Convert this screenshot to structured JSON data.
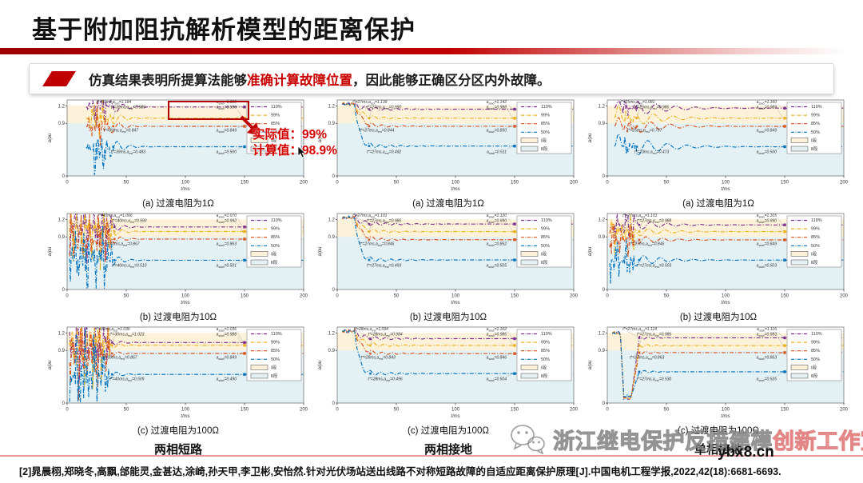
{
  "slide": {
    "title": "基于附加阻抗解析模型的距离保护",
    "callout": {
      "prefix": "仿真结果表明所提算法能够",
      "highlight": "准确计算故障位置",
      "suffix": "，因此能够正确区分区内外故障。"
    },
    "annotation": {
      "actual": "实际值：99%",
      "calculated": "计算值：98.9%"
    },
    "watermark": {
      "icon": "wechat-icon",
      "text_gray": "浙江继电保护反措建模",
      "text_pink": "创新工作室",
      "url": "ybx8.cn"
    },
    "reference": "[2]晁晨栩,郑晓冬,高飘,邰能灵,金甚达,涂崎,孙天甲,李卫彬,安怡然.针对光伏场站送出线路不对称短路故障的自适应距离保护原理[J].中国电机工程学报,2022,42(18):6681-6693."
  },
  "chart_data": {
    "type": "line",
    "xlabel": "t/ms",
    "ylabel": "a/pu",
    "x_ticks": [
      0,
      50,
      100,
      150,
      200
    ],
    "y_ticks": [
      0,
      0.9,
      1.2
    ],
    "xlim": [
      0,
      200
    ],
    "ylim": [
      0,
      1.3
    ],
    "grid": false,
    "legend_position": "right-inside",
    "legend": [
      "110%",
      "99%",
      "85%",
      "50%",
      "Ⅰ段",
      "Ⅱ段"
    ],
    "zone1": {
      "label": "Ⅰ段",
      "range": [
        0.9,
        1.2
      ],
      "color": "#fcf2da"
    },
    "zone2": {
      "label": "Ⅱ段",
      "range": [
        0,
        0.9
      ],
      "color": "#e3f0f4"
    },
    "series_colors": {
      "110%": "#7E2F8E",
      "99%": "#EDB120",
      "85%": "#D95319",
      "50%": "#0072BD"
    },
    "columns": [
      {
        "label": "两相短路",
        "charts": [
          {
            "caption": "(a) 过渡电阻为1Ω",
            "t_star": 39,
            "pre": "burst",
            "series": [
              {
                "name": "110%",
                "steady": 1.18,
                "est": "t*=39ms,a_est=1.184",
                "stab": "a_stab=1.180"
              },
              {
                "name": "99%",
                "steady": 0.989,
                "est": "t*=39ms,a_est=0.989",
                "stab": "a_stab=0.989"
              },
              {
                "name": "85%",
                "steady": 0.849,
                "est": "t*=39ms,a_est=0.847",
                "stab": "a_stab=0.849"
              },
              {
                "name": "50%",
                "steady": 0.5,
                "est": "t*=39ms,a_est=0.483",
                "stab": "a_stab=0.500"
              }
            ]
          },
          {
            "caption": "(b) 过渡电阻为10Ω",
            "t_star": 40,
            "pre": "chaos",
            "series": [
              {
                "name": "110%",
                "steady": 1.07,
                "est": "t*=40ms,a_est=1.066",
                "stab": "a_stab=1.070"
              },
              {
                "name": "99%",
                "steady": 0.992,
                "est": "t*=40ms,a_est=0.990",
                "stab": "a_stab=0.992"
              },
              {
                "name": "85%",
                "steady": 0.863,
                "est": "t*=40ms,a_est=0.867",
                "stab": "a_stab=0.863"
              },
              {
                "name": "50%",
                "steady": 0.501,
                "est": "t*=40ms,a_est=0.510",
                "stab": "a_stab=0.501"
              }
            ]
          },
          {
            "caption": "(c) 过渡电阻为100Ω",
            "t_star": 38,
            "pre": "chaos2",
            "series": [
              {
                "name": "110%",
                "steady": 1.036,
                "est": "t*=30ms,a_est=1.036",
                "stab": "a_stab=1.036"
              },
              {
                "name": "99%",
                "steady": 0.988,
                "est": "t*=30ms,a_est=1.023",
                "stab": "a_stab=0.988"
              },
              {
                "name": "85%",
                "steady": 0.849,
                "est": "t*=39ms,a_est=0.867",
                "stab": "a_stab=0.849"
              },
              {
                "name": "50%",
                "steady": 0.49,
                "est": "t*=40ms,a_est=0.509",
                "stab": "a_stab=0.490"
              }
            ]
          }
        ]
      },
      {
        "label": "两相接地",
        "charts": [
          {
            "caption": "(a) 过渡电阻为1Ω",
            "t_star": 27,
            "pre": "high",
            "series": [
              {
                "name": "110%",
                "steady": 1.142,
                "est": "t*=27ms,a_est=1.139",
                "stab": "a_stab=1.142"
              },
              {
                "name": "99%",
                "steady": 0.988,
                "est": "t*=27ms,a_est=0.990",
                "stab": "a_stab=0.988"
              },
              {
                "name": "85%",
                "steady": 0.85,
                "est": "t*=27ms,a_est=0.844",
                "stab": "a_stab=0.850"
              },
              {
                "name": "50%",
                "steady": 0.511,
                "est": "t*=27ms,a_est=0.492",
                "stab": "a_stab=0.511"
              }
            ]
          },
          {
            "caption": "(b) 过渡电阻为10Ω",
            "t_star": 27,
            "pre": "high",
            "series": [
              {
                "name": "110%",
                "steady": 1.12,
                "est": "t*=27ms,a_est=1.101",
                "stab": "a_stab=1.120"
              },
              {
                "name": "99%",
                "steady": 0.99,
                "est": "t*=27ms,a_est=0.986",
                "stab": "a_stab=0.990"
              },
              {
                "name": "85%",
                "steady": 0.852,
                "est": "t*=27ms,a_est=0.846",
                "stab": "a_stab=0.852"
              },
              {
                "name": "50%",
                "steady": 0.505,
                "est": "t*=27ms,a_est=0.493",
                "stab": "a_stab=0.505"
              }
            ]
          },
          {
            "caption": "(c) 过渡电阻为100Ω",
            "t_star": 28,
            "pre": "high",
            "series": [
              {
                "name": "110%",
                "steady": 1.102,
                "est": "t*=28ms,a_est=1.094",
                "stab": "a_stab=1.102"
              },
              {
                "name": "99%",
                "steady": 0.986,
                "est": "t*=28ms,a_est=0.984",
                "stab": "a_stab=0.986"
              },
              {
                "name": "85%",
                "steady": 0.846,
                "est": "t*=28ms,a_est=0.843",
                "stab": "a_stab=0.846"
              },
              {
                "name": "50%",
                "steady": 0.504,
                "est": "t*=28ms,a_est=0.496",
                "stab": "a_stab=0.504"
              }
            ]
          }
        ]
      },
      {
        "label": "单相接地",
        "charts": [
          {
            "caption": "(a) 过渡电阻为1Ω",
            "t_star": 25,
            "pre": "spike",
            "series": [
              {
                "name": "110%",
                "steady": 1.16,
                "est": "t*=25ms,a_est=1.081",
                "stab": "a_stab=1.160"
              },
              {
                "name": "99%",
                "steady": 0.989,
                "est": "t*=25ms,a_est=0.986",
                "stab": "a_stab=0.989"
              },
              {
                "name": "85%",
                "steady": 0.849,
                "est": "t*=25ms,a_est=0.797",
                "stab": "a_stab=0.849"
              },
              {
                "name": "50%",
                "steady": 0.5,
                "est": "t*=23ms,a_est=0.473",
                "stab": "a_stab=0.500"
              }
            ]
          },
          {
            "caption": "(b) 过渡电阻为10Ω",
            "t_star": 27,
            "pre": "waves",
            "series": [
              {
                "name": "110%",
                "steady": 1.105,
                "est": "t*=27ms,a_est=1.101",
                "stab": "a_stab=1.105"
              },
              {
                "name": "99%",
                "steady": 0.99,
                "est": "t*=27ms,a_est=0.988",
                "stab": "a_stab=0.990"
              },
              {
                "name": "85%",
                "steady": 0.849,
                "est": "t*=27ms,a_est=0.846",
                "stab": "a_stab=0.849"
              },
              {
                "name": "50%",
                "steady": 0.503,
                "est": "t*=27ms,a_est=0.503",
                "stab": "a_stab=0.503"
              }
            ]
          },
          {
            "caption": "(c) 过渡电阻为100Ω",
            "t_star": 27,
            "pre": "dip",
            "series": [
              {
                "name": "110%",
                "steady": 1.116,
                "est": "t*=27ms,a_est=1.114",
                "stab": "a_stab=1.116"
              },
              {
                "name": "99%",
                "steady": 0.983,
                "est": "t*=27ms,a_est=0.986",
                "stab": "a_stab=0.983"
              },
              {
                "name": "85%",
                "steady": 0.863,
                "est": "t*=27ms,a_est=0.863",
                "stab": "a_stab=0.863"
              },
              {
                "name": "50%",
                "steady": 0.535,
                "est": "t*=27ms,a_est=0.530",
                "stab": "a_stab=0.535"
              }
            ]
          }
        ]
      }
    ],
    "highlight_box": {
      "column": 0,
      "row": 0,
      "target_series": "99%"
    }
  }
}
